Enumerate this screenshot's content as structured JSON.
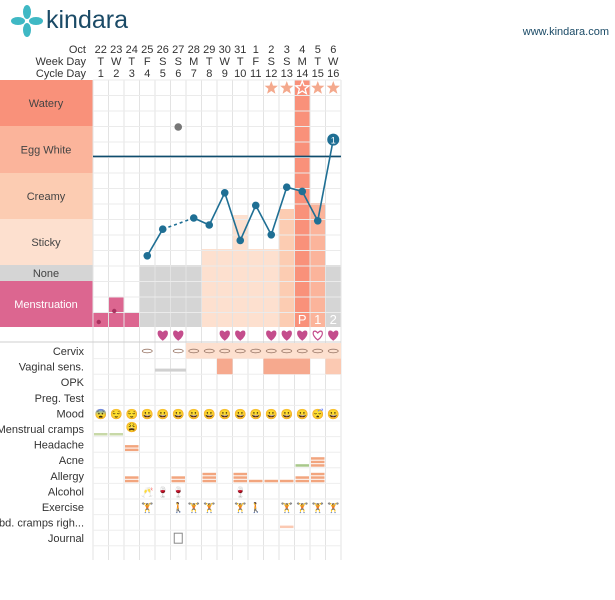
{
  "brand": {
    "name": "kindara",
    "url": "www.kindara.com"
  },
  "header": {
    "month_label": "Oct",
    "weekday_label": "Week Day",
    "cycleday_label": "Cycle Day",
    "dates": [
      "22",
      "23",
      "24",
      "25",
      "26",
      "27",
      "28",
      "29",
      "30",
      "31",
      "1",
      "2",
      "3",
      "4",
      "5",
      "6"
    ],
    "weekdays": [
      "T",
      "W",
      "T",
      "F",
      "S",
      "S",
      "M",
      "T",
      "W",
      "T",
      "F",
      "S",
      "S",
      "M",
      "T",
      "W"
    ],
    "cycle_days": [
      "1",
      "2",
      "3",
      "4",
      "5",
      "6",
      "7",
      "8",
      "9",
      "10",
      "11",
      "12",
      "13",
      "14",
      "15",
      "16"
    ]
  },
  "fluid_rows": [
    {
      "label": "Watery",
      "color": "#f9917a"
    },
    {
      "label": "Egg White",
      "color": "#fbb49b"
    },
    {
      "label": "Creamy",
      "color": "#fcccb2"
    },
    {
      "label": "Sticky",
      "color": "#fde0cf"
    },
    {
      "label": "None",
      "color": "#d5d5d5"
    },
    {
      "label": "Menstruation",
      "color": "#dc6690"
    }
  ],
  "fluid_columns": [
    {
      "day": 1,
      "level": "menstruation-light"
    },
    {
      "day": 2,
      "level": "menstruation-medium"
    },
    {
      "day": 3,
      "level": "menstruation-light"
    },
    {
      "day": 4,
      "level": "none"
    },
    {
      "day": 5,
      "level": "none"
    },
    {
      "day": 6,
      "level": "none"
    },
    {
      "day": 7,
      "level": "none"
    },
    {
      "day": 8,
      "level": "sticky-partial"
    },
    {
      "day": 9,
      "level": "sticky-partial"
    },
    {
      "day": 10,
      "level": "creamy-partial"
    },
    {
      "day": 11,
      "level": "sticky-partial"
    },
    {
      "day": 12,
      "level": "sticky-partial"
    },
    {
      "day": 13,
      "level": "sticky"
    },
    {
      "day": 14,
      "level": "watery-peak"
    },
    {
      "day": 15,
      "level": "creamy"
    },
    {
      "day": 16,
      "level": "none"
    }
  ],
  "bbt": {
    "points": [
      {
        "day": 4,
        "value": 0.03
      },
      {
        "day": 5,
        "value": 0.22
      },
      {
        "day": 7,
        "value": 0.3
      },
      {
        "day": 8,
        "value": 0.25
      },
      {
        "day": 9,
        "value": 0.48
      },
      {
        "day": 10,
        "value": 0.14
      },
      {
        "day": 11,
        "value": 0.39
      },
      {
        "day": 12,
        "value": 0.18
      },
      {
        "day": 13,
        "value": 0.52
      },
      {
        "day": 14,
        "value": 0.49
      },
      {
        "day": 15,
        "value": 0.28
      },
      {
        "day": 16,
        "value": 0.86
      }
    ],
    "dashed_segments": [
      [
        5,
        7
      ]
    ],
    "excluded_point": {
      "day": 6,
      "value": 0.95
    },
    "coverline_value": 0.74,
    "day16_marker": "1",
    "line_color": "#1f6f94",
    "coverline_color": "#0f4d6e"
  },
  "peak_markers": [
    {
      "day": 12,
      "label": "star"
    },
    {
      "day": 13,
      "label": "star"
    },
    {
      "day": 14,
      "label": "star-outline"
    },
    {
      "day": 15,
      "label": "sun"
    },
    {
      "day": 16,
      "label": "star"
    }
  ],
  "peak_day_labels": [
    {
      "day": 14,
      "text": "P"
    },
    {
      "day": 15,
      "text": "1"
    },
    {
      "day": 16,
      "text": "2"
    }
  ],
  "sex_hearts": [
    5,
    6,
    9,
    10,
    12,
    13,
    14,
    15,
    16
  ],
  "outlined_heart_day": 15,
  "symptom_rows": [
    {
      "label": "Cervix"
    },
    {
      "label": "Vaginal sens."
    },
    {
      "label": "OPK"
    },
    {
      "label": "Preg. Test"
    },
    {
      "label": "Mood"
    },
    {
      "label": "Menstrual cramps"
    },
    {
      "label": "Headache"
    },
    {
      "label": "Acne"
    },
    {
      "label": "Allergy"
    },
    {
      "label": "Alcohol"
    },
    {
      "label": "Exercise"
    },
    {
      "label": "abd. cramps righ..."
    },
    {
      "label": "Journal"
    }
  ],
  "mood_icons": [
    "😨",
    "😌",
    "😌",
    "😀",
    "😀",
    "😀",
    "😀",
    "😀",
    "😀",
    "😀",
    "😀",
    "😀",
    "😀",
    "😀",
    "😴",
    "😀"
  ],
  "mood_extra": {
    "day": 3,
    "icon": "😩"
  },
  "alcohol_icons": [
    {
      "day": 4,
      "icon": "🥂"
    },
    {
      "day": 5,
      "icon": "🍷"
    },
    {
      "day": 6,
      "icon": "🍷"
    },
    {
      "day": 10,
      "icon": "🍷"
    }
  ],
  "exercise_icons": [
    {
      "day": 4,
      "icon": "🏋"
    },
    {
      "day": 6,
      "icon": "🚶"
    },
    {
      "day": 7,
      "icon": "🏋"
    },
    {
      "day": 8,
      "icon": "🏋"
    },
    {
      "day": 10,
      "icon": "🏋"
    },
    {
      "day": 11,
      "icon": "🚶"
    },
    {
      "day": 13,
      "icon": "🏋"
    },
    {
      "day": 14,
      "icon": "🏋"
    },
    {
      "day": 15,
      "icon": "🏋"
    },
    {
      "day": 16,
      "icon": "🏋"
    }
  ],
  "journal_icon_day": 6,
  "colors": {
    "accent": "#1a4a66",
    "peak_column": "#f9917a",
    "heart": "#c44d8c",
    "bar_orange": "#f2a57e",
    "bar_green": "#c8d9a8",
    "star": "#f4a98d"
  }
}
